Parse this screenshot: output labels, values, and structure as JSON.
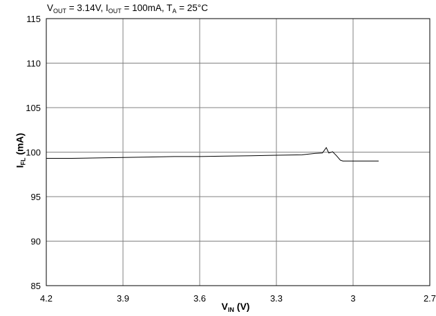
{
  "chart_data": {
    "type": "line",
    "title": {
      "parts": [
        {
          "main": "V",
          "sub": "OUT"
        },
        {
          "text": " = 3.14V, "
        },
        {
          "main": "I",
          "sub": "OUT"
        },
        {
          "text": " = 100mA, "
        },
        {
          "main": "T",
          "sub": "A"
        },
        {
          "text": " = 25°C"
        }
      ]
    },
    "xlabel": {
      "main": "V",
      "sub": "IN",
      "rest": " (V)"
    },
    "ylabel": {
      "main": "I",
      "sub": "FL",
      "rest": " (mA)"
    },
    "xlim": [
      4.2,
      2.7
    ],
    "ylim": [
      85,
      115
    ],
    "x_reversed": true,
    "xticks": [
      4.2,
      3.9,
      3.6,
      3.3,
      3.0,
      2.7
    ],
    "xtick_labels": [
      "4.2",
      "3.9",
      "3.6",
      "3.3",
      "3",
      "2.7"
    ],
    "yticks": [
      85,
      90,
      95,
      100,
      105,
      110,
      115
    ],
    "ytick_labels": [
      "85",
      "90",
      "95",
      "100",
      "105",
      "110",
      "115"
    ],
    "grid": true,
    "line_color": "#000000",
    "series": [
      {
        "x": [
          4.2,
          4.1,
          4.0,
          3.9,
          3.8,
          3.7,
          3.6,
          3.5,
          3.4,
          3.3,
          3.2,
          3.15,
          3.12,
          3.105,
          3.095,
          3.08,
          3.065,
          3.05,
          3.04,
          3.0,
          2.95,
          2.9
        ],
        "y": [
          99.3,
          99.3,
          99.35,
          99.4,
          99.45,
          99.5,
          99.5,
          99.55,
          99.6,
          99.65,
          99.7,
          99.85,
          99.9,
          100.5,
          99.9,
          100.05,
          99.6,
          99.1,
          99.0,
          99.0,
          99.0,
          99.0
        ]
      }
    ]
  }
}
